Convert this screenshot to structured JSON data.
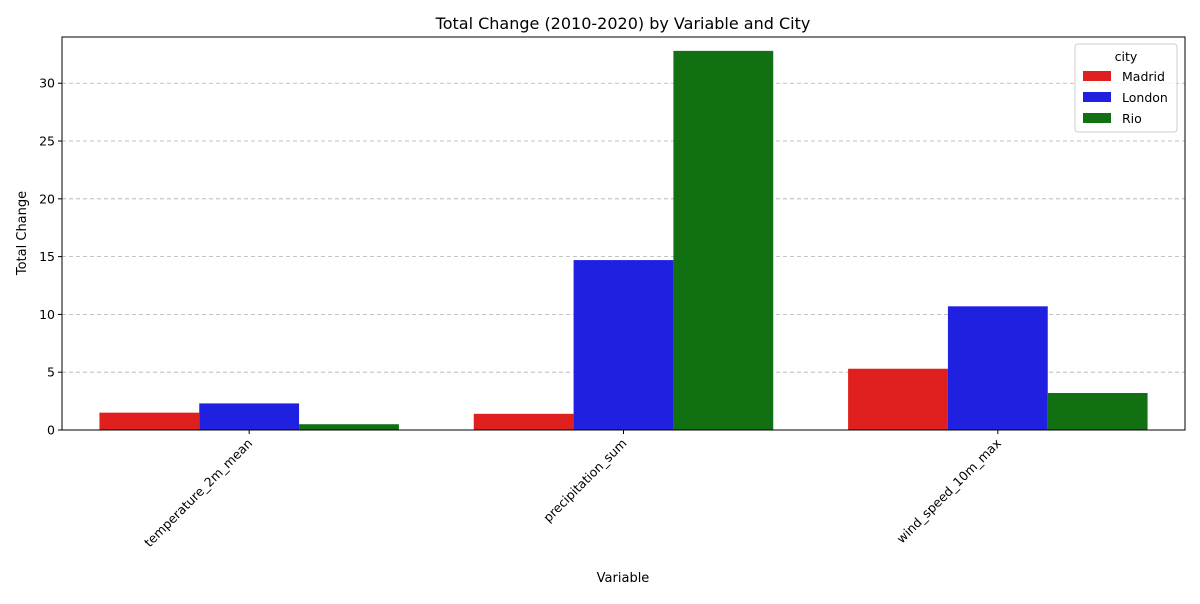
{
  "chart_data": {
    "type": "bar",
    "title": "Total Change (2010-2020) by Variable and City",
    "xlabel": "Variable",
    "ylabel": "Total Change",
    "categories": [
      "temperature_2m_mean",
      "precipitation_sum",
      "wind_speed_10m_max"
    ],
    "series": [
      {
        "name": "Madrid",
        "color": "#e01f1f",
        "values": [
          1.5,
          1.4,
          5.3
        ]
      },
      {
        "name": "London",
        "color": "#2020e0",
        "values": [
          2.3,
          14.7,
          10.7
        ]
      },
      {
        "name": "Rio",
        "color": "#117011",
        "values": [
          0.5,
          32.8,
          3.2
        ]
      }
    ],
    "ylim": [
      0,
      34
    ],
    "yticks": [
      0,
      5,
      10,
      15,
      20,
      25,
      30
    ],
    "grid": "y-dashed",
    "legend_title": "city",
    "legend_position": "top-right"
  }
}
